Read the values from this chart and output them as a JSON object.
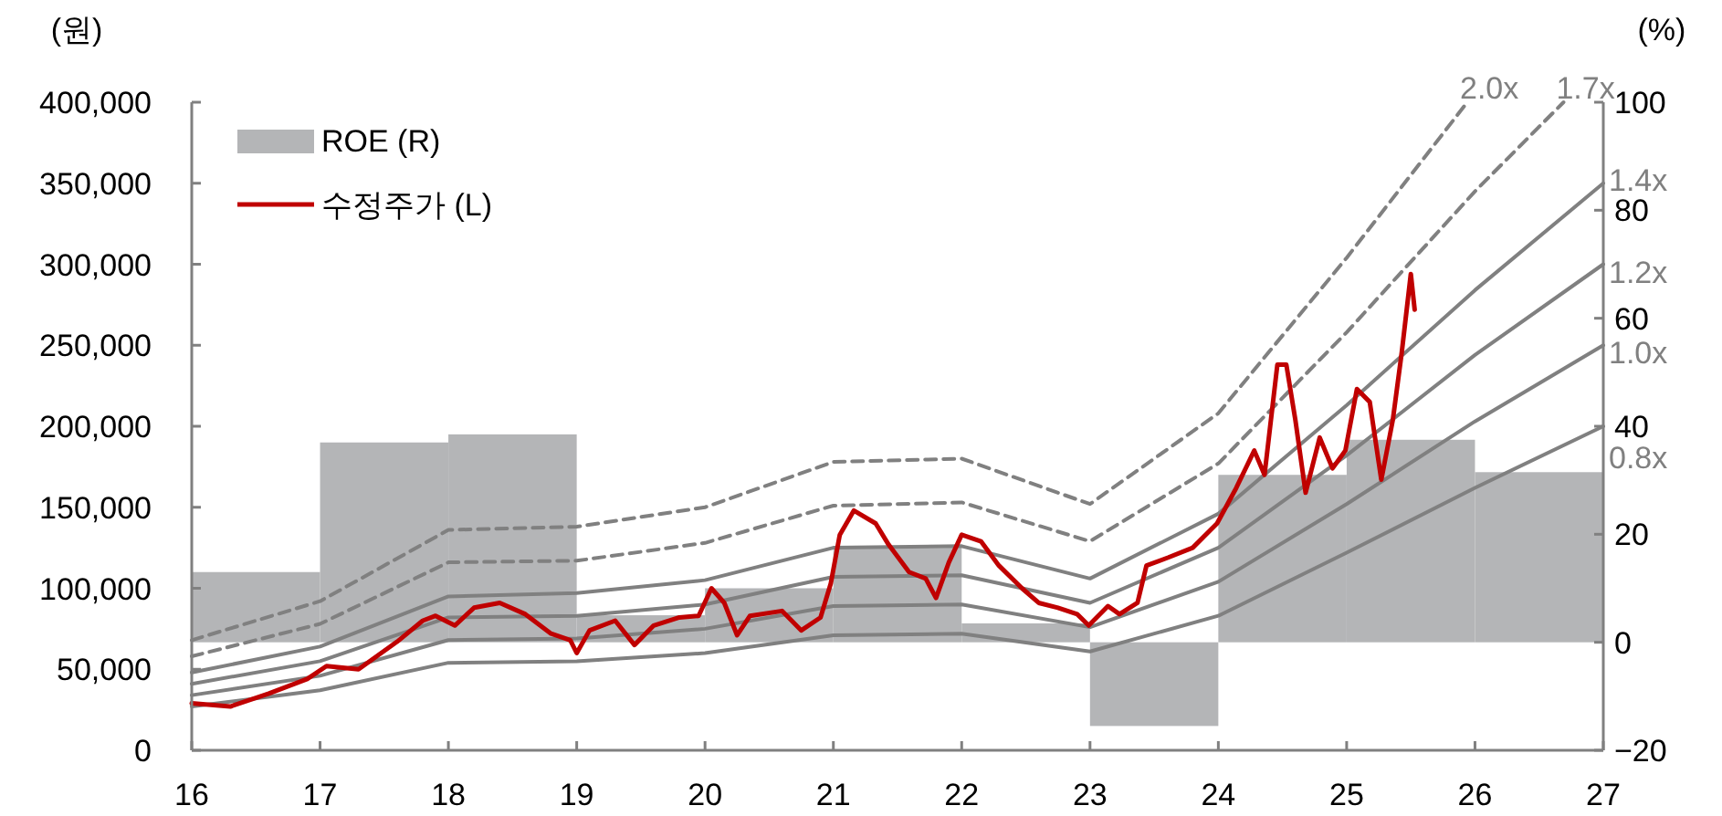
{
  "chart_data": {
    "type": "line",
    "ylabel": "(원)",
    "y2label": "(%)",
    "xlim": [
      16,
      27
    ],
    "xticks": [
      16,
      17,
      18,
      19,
      20,
      21,
      22,
      23,
      24,
      25,
      26,
      27
    ],
    "ylim": [
      0,
      400000
    ],
    "yticks": [
      0,
      {
        "value": 50000,
        "label": "50,000"
      },
      {
        "value": 100000,
        "label": "100,000"
      },
      {
        "value": 150000,
        "label": "150,000"
      },
      {
        "value": 200000,
        "label": "200,000"
      },
      {
        "value": 250000,
        "label": "250,000"
      },
      {
        "value": 300000,
        "label": "300,000"
      },
      {
        "value": 350000,
        "label": "350,000"
      },
      {
        "value": 400000,
        "label": "400,000"
      }
    ],
    "y2lim": [
      -20,
      100
    ],
    "y2ticks": [
      {
        "value": -20,
        "label": "−20"
      },
      0,
      20,
      40,
      60,
      80,
      100
    ],
    "legend": "top left",
    "grid": false,
    "series": [
      {
        "name": "ROE (R)",
        "type": "bar",
        "axis": "y2",
        "color": "#b4b5b7",
        "x": [
          16.5,
          17.5,
          18.5,
          19.5,
          20.5,
          21.5,
          22.5,
          23.5,
          24.5,
          25.5,
          26.5
        ],
        "values": [
          13,
          37,
          38.5,
          5,
          10,
          17.5,
          3.5,
          -15.5,
          31,
          37.5,
          31.5
        ]
      },
      {
        "name": "0.8x",
        "type": "line",
        "line_style": "solid",
        "color": "#808080",
        "x": [
          16,
          17,
          18,
          19,
          20,
          21,
          22,
          23,
          24,
          25,
          26,
          27
        ],
        "values": [
          27000,
          37000,
          54000,
          55000,
          60000,
          71000,
          72000,
          61000,
          83000,
          122000,
          162000,
          200000
        ]
      },
      {
        "name": "1.0x",
        "type": "line",
        "line_style": "solid",
        "color": "#808080",
        "x": [
          16,
          17,
          18,
          19,
          20,
          21,
          22,
          23,
          24,
          25,
          26,
          27
        ],
        "values": [
          34000,
          46000,
          68000,
          69000,
          75000,
          89000,
          90000,
          76000,
          104000,
          152000,
          203000,
          250000
        ]
      },
      {
        "name": "1.2x",
        "type": "line",
        "line_style": "solid",
        "color": "#808080",
        "x": [
          16,
          17,
          18,
          19,
          20,
          21,
          22,
          23,
          24,
          25,
          26,
          27
        ],
        "values": [
          41000,
          55000,
          82000,
          83000,
          90000,
          107000,
          108000,
          91000,
          125000,
          182000,
          244000,
          300000
        ]
      },
      {
        "name": "1.4x",
        "type": "line",
        "line_style": "solid",
        "color": "#808080",
        "x": [
          16,
          17,
          18,
          19,
          20,
          21,
          22,
          23,
          24,
          25,
          26,
          27
        ],
        "values": [
          48000,
          64000,
          95000,
          97000,
          105000,
          125000,
          126000,
          106000,
          146000,
          213000,
          284000,
          350000
        ]
      },
      {
        "name": "1.7x",
        "type": "line",
        "line_style": "dashed",
        "color": "#808080",
        "x": [
          16,
          17,
          18,
          19,
          20,
          21,
          22,
          23,
          24,
          25,
          26,
          26.69
        ],
        "values": [
          58000,
          78000,
          116000,
          117000,
          128000,
          151000,
          153000,
          129000,
          177000,
          258000,
          345000,
          400000
        ]
      },
      {
        "name": "2.0x",
        "type": "line",
        "line_style": "dashed",
        "color": "#808080",
        "x": [
          16,
          17,
          18,
          19,
          20,
          21,
          22,
          23,
          24,
          25,
          25.94
        ],
        "values": [
          68000,
          92000,
          136000,
          138000,
          150000,
          178000,
          180000,
          152000,
          208000,
          304000,
          400000
        ]
      },
      {
        "name": "수정주가 (L)",
        "color": "#c00000",
        "x": [
          16.0,
          16.3,
          16.6,
          16.9,
          17.05,
          17.3,
          17.6,
          17.8,
          17.9,
          18.05,
          18.2,
          18.4,
          18.6,
          18.8,
          18.95,
          19.0,
          19.1,
          19.3,
          19.45,
          19.6,
          19.8,
          19.95,
          20.05,
          20.15,
          20.25,
          20.35,
          20.6,
          20.75,
          20.9,
          20.98,
          21.05,
          21.16,
          21.33,
          21.43,
          21.59,
          21.72,
          21.8,
          21.9,
          22.0,
          22.15,
          22.29,
          22.47,
          22.6,
          22.75,
          22.9,
          22.99,
          23.14,
          23.23,
          23.37,
          23.44,
          23.61,
          23.8,
          23.99,
          24.14,
          24.28,
          24.36,
          24.46,
          24.53,
          24.6,
          24.68,
          24.79,
          24.89,
          24.99,
          25.08,
          25.18,
          25.27,
          25.36,
          25.43,
          25.5,
          25.53
        ],
        "values": [
          29000,
          27000,
          35000,
          44000,
          52000,
          50000,
          67000,
          80000,
          83000,
          77000,
          88000,
          91000,
          84000,
          72000,
          68000,
          60000,
          74000,
          80000,
          65000,
          77000,
          82000,
          83000,
          100000,
          91000,
          71000,
          83000,
          86000,
          74000,
          82000,
          103000,
          133000,
          148000,
          140000,
          127000,
          110000,
          106000,
          94000,
          116000,
          133000,
          129000,
          114000,
          100000,
          91000,
          88000,
          84000,
          77000,
          89000,
          84000,
          91000,
          114000,
          119000,
          125000,
          140000,
          162000,
          185000,
          170000,
          238000,
          238000,
          204000,
          159000,
          193000,
          174000,
          185000,
          223000,
          215000,
          167000,
          204000,
          246000,
          294000,
          272000
        ]
      }
    ]
  }
}
